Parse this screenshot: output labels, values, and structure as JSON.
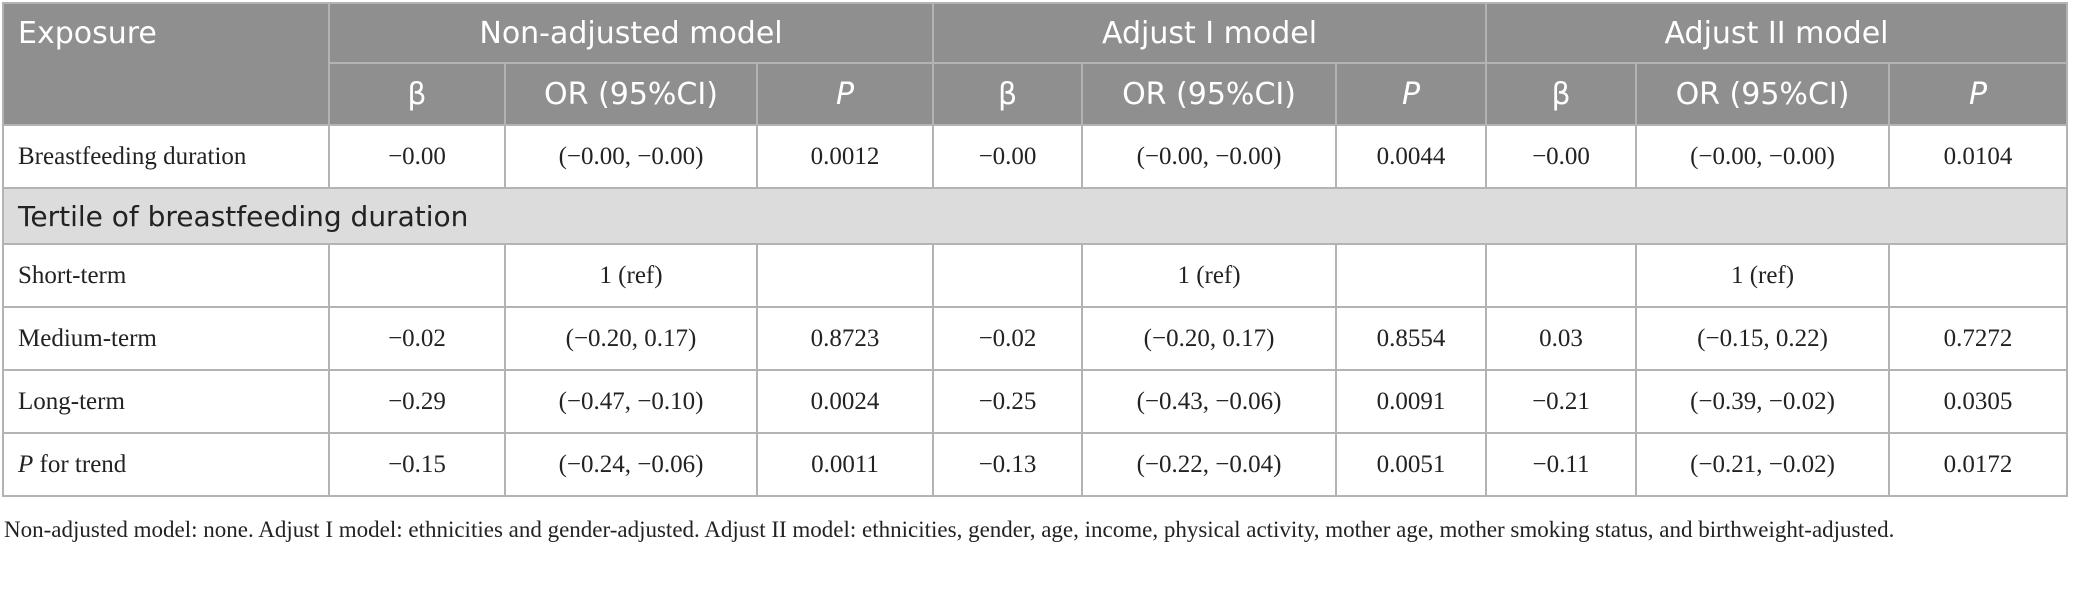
{
  "table": {
    "header": {
      "exposure": "Exposure",
      "groups": [
        {
          "name": "Non-adjusted model",
          "columns": [
            "β",
            "OR (95%CI)",
            "P"
          ]
        },
        {
          "name": "Adjust I model",
          "columns": [
            "β",
            "OR (95%CI)",
            "P"
          ]
        },
        {
          "name": "Adjust II model",
          "columns": [
            "β",
            "OR (95%CI)",
            "P"
          ]
        }
      ]
    },
    "rows": [
      {
        "label": "Breastfeeding duration",
        "cells": [
          "−0.00",
          "(−0.00, −0.00)",
          "0.0012",
          "−0.00",
          "(−0.00, −0.00)",
          "0.0044",
          "−0.00",
          "(−0.00, −0.00)",
          "0.0104"
        ]
      },
      {
        "section": "Tertile of breastfeeding duration"
      },
      {
        "label": "Short-term",
        "cells": [
          null,
          "1 (ref)",
          null,
          null,
          "1 (ref)",
          null,
          null,
          "1 (ref)",
          null
        ]
      },
      {
        "label": "Medium-term",
        "cells": [
          "−0.02",
          "(−0.20, 0.17)",
          "0.8723",
          "−0.02",
          "(−0.20, 0.17)",
          "0.8554",
          "0.03",
          "(−0.15, 0.22)",
          "0.7272"
        ]
      },
      {
        "label": "Long-term",
        "cells": [
          "−0.29",
          "(−0.47, −0.10)",
          "0.0024",
          "−0.25",
          "(−0.43, −0.06)",
          "0.0091",
          "−0.21",
          "(−0.39, −0.02)",
          "0.0305"
        ]
      },
      {
        "label": "P for trend",
        "cells": [
          "−0.15",
          "(−0.24, −0.06)",
          "0.0011",
          "−0.13",
          "(−0.22, −0.04)",
          "0.0051",
          "−0.11",
          "(−0.21, −0.02)",
          "0.0172"
        ]
      }
    ],
    "footnote": "Non-adjusted model: none. Adjust I model: ethnicities and gender-adjusted. Adjust II model: ethnicities, gender, age, income, physical activity, mother age, mother smoking status, and birthweight-adjusted."
  }
}
